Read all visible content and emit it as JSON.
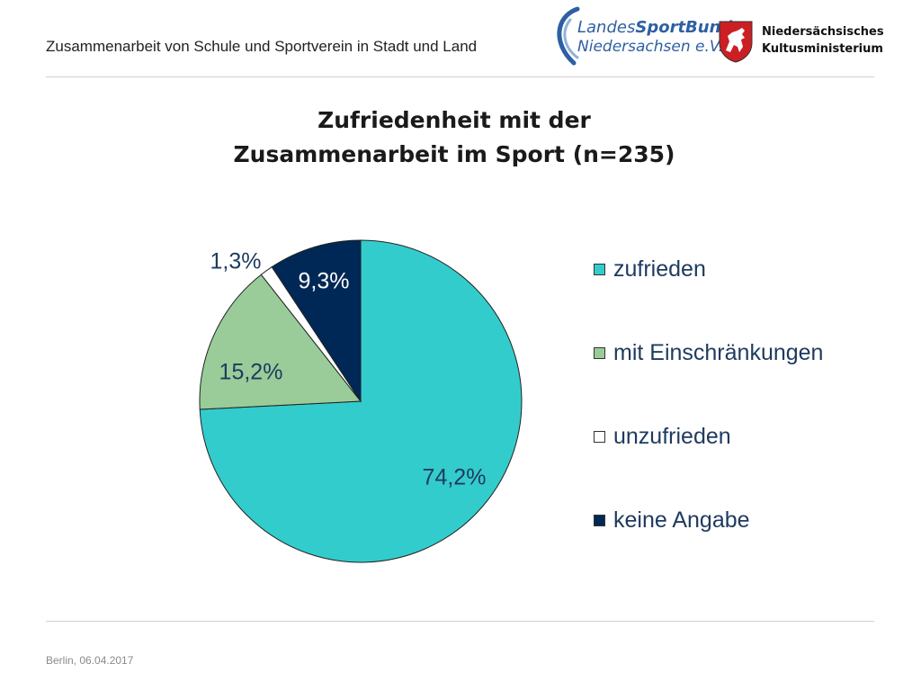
{
  "header": {
    "title": "Zusammenarbeit von Schule und Sportverein in Stadt und Land",
    "logo_lsb": {
      "line1_a": "Landes",
      "line1_b": "SportBund",
      "line2": "Niedersachsen e.V."
    },
    "logo_ministry": {
      "line1": "Niedersächsisches",
      "line2": "Kultusministerium"
    }
  },
  "chart_data": {
    "type": "pie",
    "title_line1": "Zufriedenheit mit der",
    "title_line2": "Zusammenarbeit im Sport (n=235)",
    "legend_position": "right",
    "slices": [
      {
        "name": "zufrieden",
        "value": 74.2,
        "label": "74,2%",
        "color": "#33cccc"
      },
      {
        "name": "mit Einschränkungen",
        "value": 15.2,
        "label": "15,2%",
        "color": "#99cc99"
      },
      {
        "name": "unzufrieden",
        "value": 1.3,
        "label": "1,3%",
        "color": "#ffffff"
      },
      {
        "name": "keine Angabe",
        "value": 9.3,
        "label": "9,3%",
        "color": "#002856"
      }
    ]
  },
  "footer": {
    "text": "Berlin, 06.04.2017"
  }
}
